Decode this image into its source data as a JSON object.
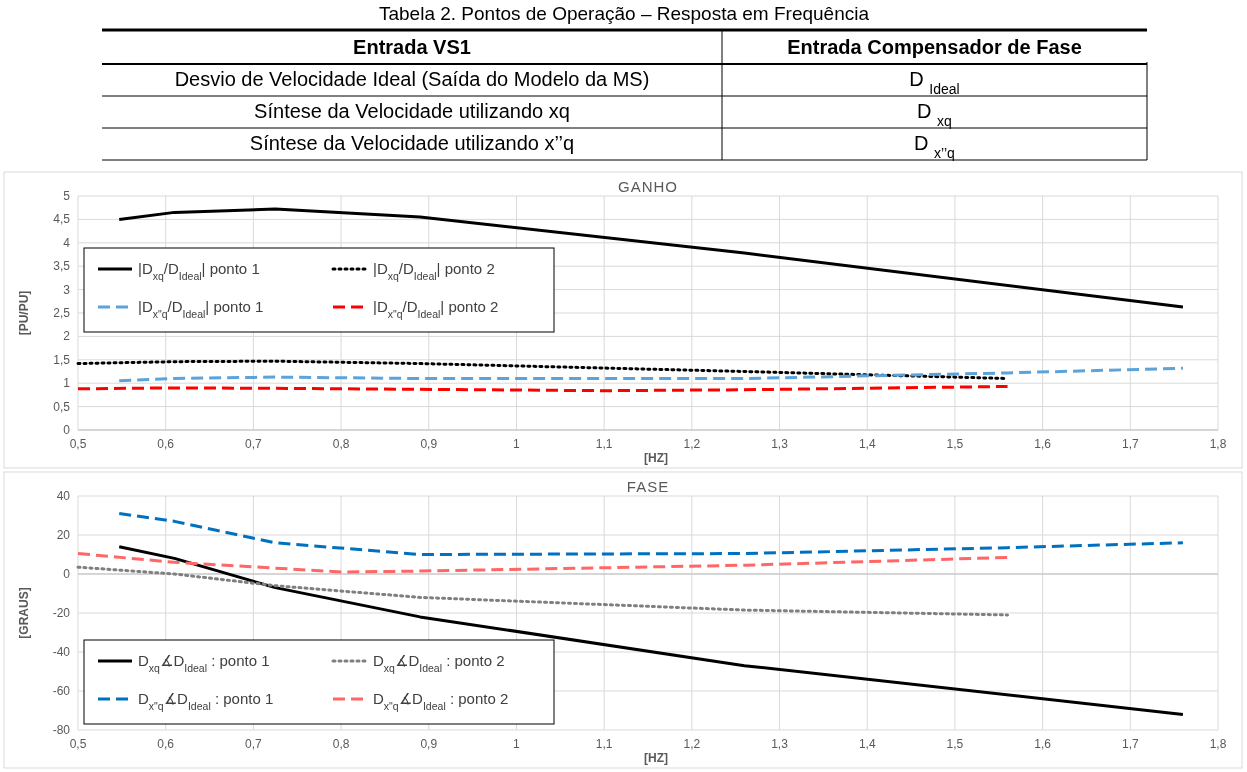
{
  "chart_data": [
    {
      "type": "other",
      "title": "Tabela 2. Pontos de Operação – Resposta em Frequência",
      "annotations": [
        "Entrada VS1",
        "Entrada Compensador de Fase",
        "Desvio de Velocidade Ideal (Saída do Modelo da MS)",
        "D $_{Ideal}$",
        "Síntese da Velocidade utilizando xq",
        "D $_{xq}$",
        "Síntese da Velocidade utilizando x’’q",
        "D $_{x’’q}$"
      ]
    },
    {
      "type": "line",
      "title": "GANHO",
      "xlabel": "[HZ]",
      "ylabel": "[PU/PU]",
      "grid": true,
      "legend": "top left",
      "xlim": [
        0.5,
        1.8
      ],
      "xticks": [
        {
          "value": 0.5,
          "label": "0,5"
        },
        {
          "value": 0.6,
          "label": "0,6"
        },
        {
          "value": 0.7,
          "label": "0,7"
        },
        {
          "value": 0.8,
          "label": "0,8"
        },
        {
          "value": 0.9,
          "label": "0,9"
        },
        1,
        {
          "value": 1.1,
          "label": "1,1"
        },
        {
          "value": 1.2,
          "label": "1,2"
        },
        {
          "value": 1.3,
          "label": "1,3"
        },
        {
          "value": 1.4,
          "label": "1,4"
        },
        {
          "value": 1.5,
          "label": "1,5"
        },
        {
          "value": 1.6,
          "label": "1,6"
        },
        {
          "value": 1.7,
          "label": "1,7"
        },
        {
          "value": 1.8,
          "label": "1,8"
        }
      ],
      "ylim": [
        0,
        5
      ],
      "yticks": [
        0,
        {
          "value": 0.5,
          "label": "0,5"
        },
        1,
        {
          "value": 1.5,
          "label": "1,5"
        },
        2,
        {
          "value": 2.5,
          "label": "2,5"
        },
        3,
        {
          "value": 3.5,
          "label": "3,5"
        },
        4,
        {
          "value": 4.5,
          "label": "4,5"
        },
        5
      ],
      "series": [
        {
          "name": "|D$_{xq}$/D$_{Ideal}$| ponto 1",
          "color": "#000000",
          "line_style": "solid",
          "x": [
            0.547,
            0.61,
            0.725,
            0.89,
            1.26,
            1.76
          ],
          "values": [
            4.5,
            4.65,
            4.72,
            4.55,
            3.78,
            2.63
          ]
        },
        {
          "name": "|D$_{xq}$/D$_{Ideal}$| ponto 2",
          "color": "#000000",
          "line_style": "dotted",
          "x": [
            0.5,
            0.61,
            0.725,
            0.89,
            1.26,
            1.56
          ],
          "values": [
            1.42,
            1.46,
            1.47,
            1.42,
            1.25,
            1.1
          ]
        },
        {
          "name": "|D$_{x\"q}$/D$_{Ideal}$| ponto 1",
          "color": "#5ba3d9",
          "line_style": "dashed",
          "x": [
            0.547,
            0.61,
            0.725,
            0.89,
            1.26,
            1.56,
            1.76
          ],
          "values": [
            1.05,
            1.1,
            1.13,
            1.1,
            1.1,
            1.22,
            1.32
          ]
        },
        {
          "name": "|D$_{x\"q}$/D$_{Ideal}$| ponto 2",
          "color": "#ff0000",
          "line_style": "dashed",
          "x": [
            0.5,
            0.61,
            0.725,
            0.89,
            1.1,
            1.26,
            1.56
          ],
          "values": [
            0.88,
            0.9,
            0.89,
            0.87,
            0.84,
            0.86,
            0.93
          ]
        }
      ]
    },
    {
      "type": "line",
      "title": "FASE",
      "xlabel": "[HZ]",
      "ylabel": "[GRAUS]",
      "grid": true,
      "legend": "bottom left",
      "xlim": [
        0.5,
        1.8
      ],
      "xticks": [
        {
          "value": 0.5,
          "label": "0,5"
        },
        {
          "value": 0.6,
          "label": "0,6"
        },
        {
          "value": 0.7,
          "label": "0,7"
        },
        {
          "value": 0.8,
          "label": "0,8"
        },
        {
          "value": 0.9,
          "label": "0,9"
        },
        1,
        {
          "value": 1.1,
          "label": "1,1"
        },
        {
          "value": 1.2,
          "label": "1,2"
        },
        {
          "value": 1.3,
          "label": "1,3"
        },
        {
          "value": 1.4,
          "label": "1,4"
        },
        {
          "value": 1.5,
          "label": "1,5"
        },
        {
          "value": 1.6,
          "label": "1,6"
        },
        {
          "value": 1.7,
          "label": "1,7"
        },
        {
          "value": 1.8,
          "label": "1,8"
        }
      ],
      "ylim": [
        -80,
        40
      ],
      "yticks": [
        -80,
        -60,
        -40,
        -20,
        0,
        20,
        40
      ],
      "series": [
        {
          "name": "D$_{xq}$∡D$_{Ideal}$ : ponto 1",
          "color": "#000000",
          "line_style": "solid",
          "x": [
            0.547,
            0.61,
            0.725,
            0.89,
            1.26,
            1.76
          ],
          "values": [
            14,
            8,
            -7,
            -22,
            -47,
            -72
          ]
        },
        {
          "name": "D$_{xq}$∡D$_{Ideal}$ : ponto 2",
          "color": "#7f7f7f",
          "line_style": "dotted",
          "x": [
            0.5,
            0.61,
            0.725,
            0.89,
            1.26,
            1.56
          ],
          "values": [
            3.5,
            0,
            -6,
            -12,
            -18.5,
            -21
          ]
        },
        {
          "name": "D$_{x\"q}$∡D$_{Ideal}$ : ponto 1",
          "color": "#0070c0",
          "line_style": "dashed",
          "x": [
            0.547,
            0.61,
            0.725,
            0.89,
            1.26,
            1.56,
            1.76
          ],
          "values": [
            31,
            27,
            16,
            10,
            10.5,
            13.5,
            16
          ]
        },
        {
          "name": "D$_{x\"q}$∡D$_{Ideal}$ : ponto 2",
          "color": "#ff6666",
          "line_style": "dashed",
          "x": [
            0.5,
            0.61,
            0.725,
            0.8,
            0.89,
            1.26,
            1.56
          ],
          "values": [
            10.5,
            6,
            3,
            1,
            1.5,
            4.5,
            8.5
          ]
        }
      ]
    }
  ]
}
